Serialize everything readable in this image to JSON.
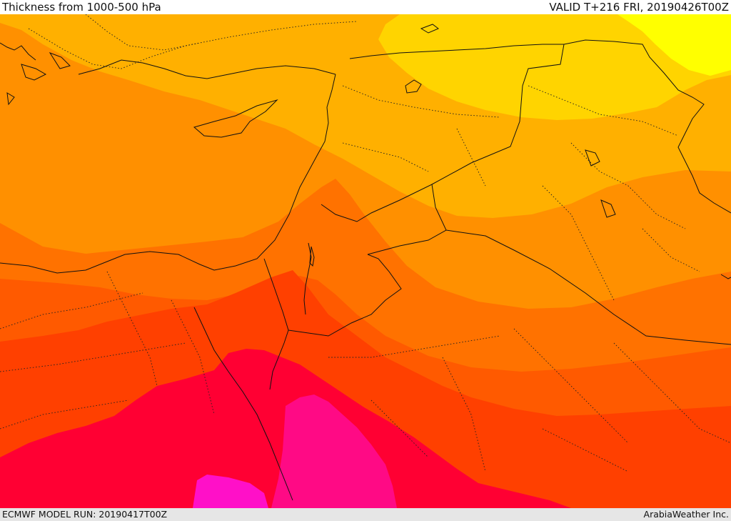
{
  "header": {
    "title": "Thickness from 1000-500 hPa",
    "valid": "VALID T+216 FRI, 20190426T00Z"
  },
  "footer": {
    "model_run": "ECMWF MODEL RUN: 20190417T00Z",
    "credit": "ArabiaWeather Inc."
  },
  "map": {
    "colors": {
      "band_1": "#ffff00",
      "band_2": "#ffd400",
      "band_3": "#ffb000",
      "band_4": "#ff9000",
      "band_5": "#ff7200",
      "band_6": "#ff5a00",
      "band_7": "#ff4000",
      "band_8": "#ff0033",
      "band_9": "#ff0a85",
      "band_10": "#ff10c8",
      "border": "#111111"
    }
  }
}
